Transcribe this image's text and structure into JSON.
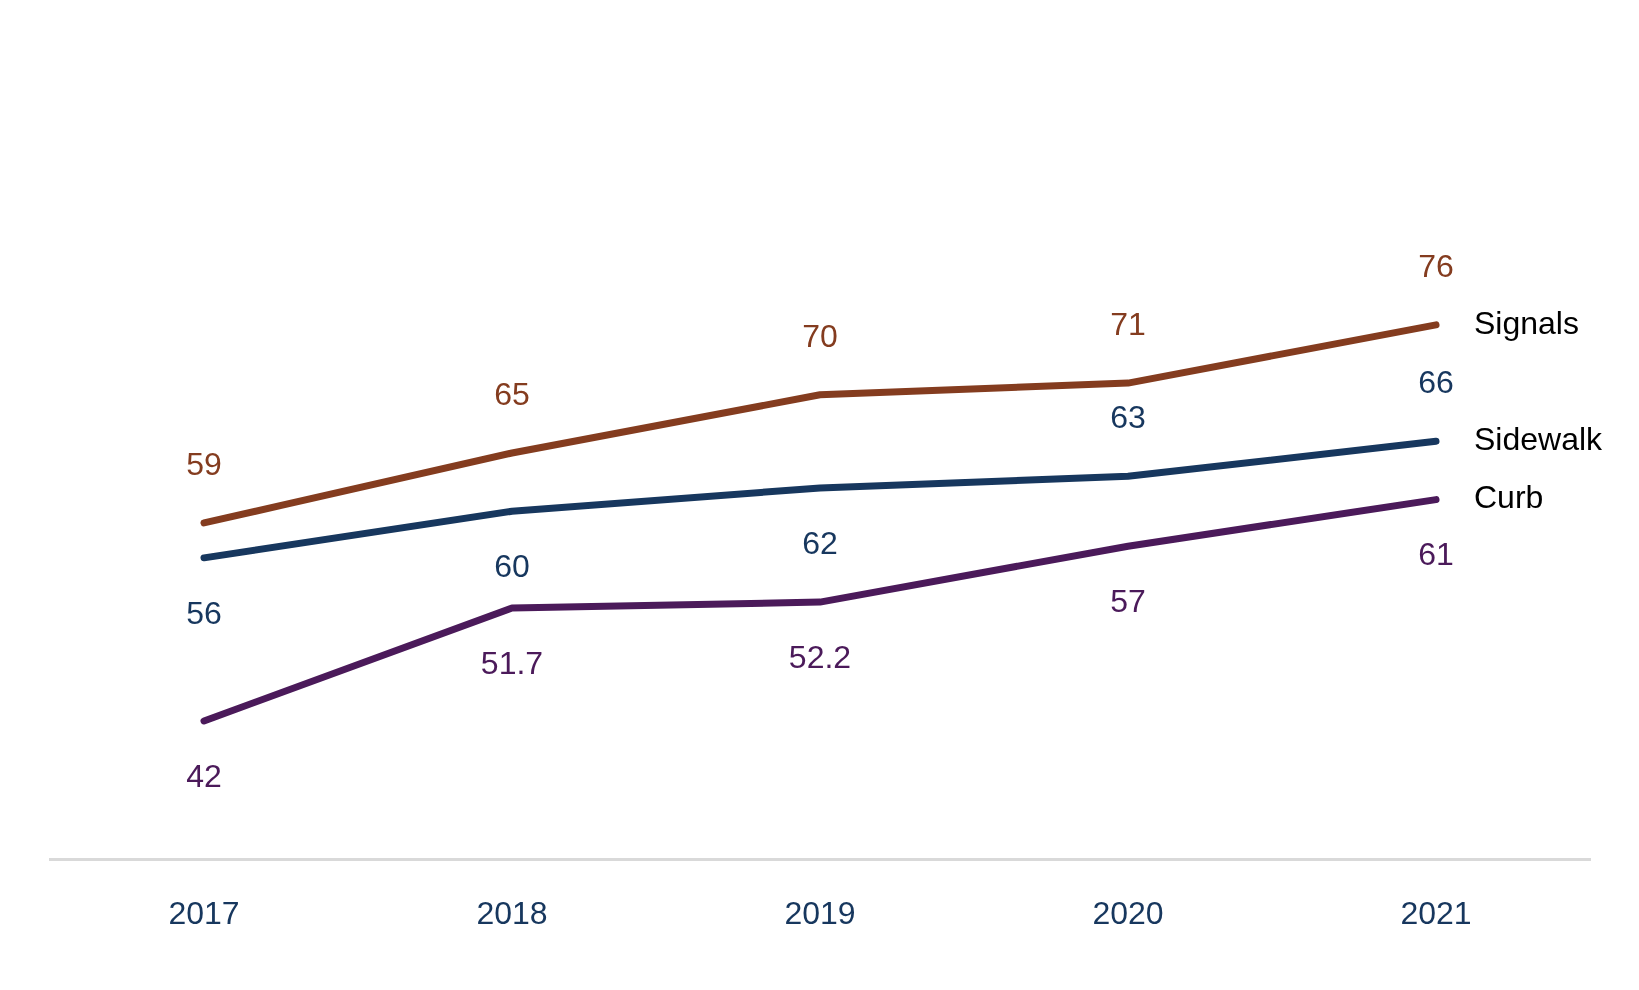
{
  "chart_data": {
    "type": "line",
    "categories": [
      "2017",
      "2018",
      "2019",
      "2020",
      "2021"
    ],
    "series": [
      {
        "name": "Signals",
        "color": "#843c1f",
        "values": [
          59,
          65,
          70,
          71,
          76
        ]
      },
      {
        "name": "Sidewalk",
        "color": "#17375e",
        "values": [
          56,
          60,
          62,
          63,
          66
        ]
      },
      {
        "name": "Curb",
        "color": "#4b1a5a",
        "values": [
          42,
          51.7,
          52.2,
          57,
          61
        ]
      }
    ],
    "tick_labels": "x",
    "grid": false,
    "legend": false,
    "data_labels": true,
    "marker": "none",
    "line_style": "solid"
  }
}
